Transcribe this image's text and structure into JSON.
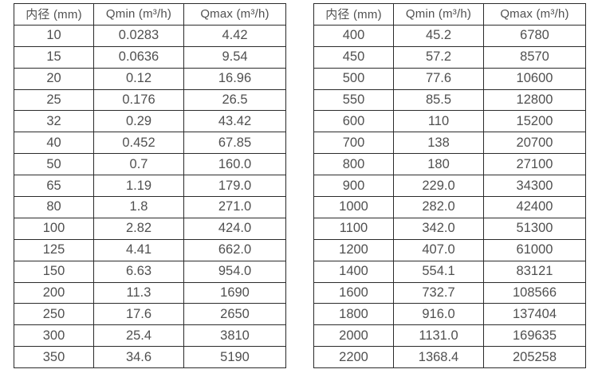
{
  "colors": {
    "border": "#2b2b2b",
    "text": "#505050",
    "background": "#ffffff"
  },
  "chart_data": [
    {
      "type": "table",
      "headers": [
        "内径 (mm)",
        "Qmin (m³/h)",
        "Qmax (m³/h)"
      ],
      "rows": [
        [
          "10",
          "0.0283",
          "4.42"
        ],
        [
          "15",
          "0.0636",
          "9.54"
        ],
        [
          "20",
          "0.12",
          "16.96"
        ],
        [
          "25",
          "0.176",
          "26.5"
        ],
        [
          "32",
          "0.29",
          "43.42"
        ],
        [
          "40",
          "0.452",
          "67.85"
        ],
        [
          "50",
          "0.7",
          "160.0"
        ],
        [
          "65",
          "1.19",
          "179.0"
        ],
        [
          "80",
          "1.8",
          "271.0"
        ],
        [
          "100",
          "2.82",
          "424.0"
        ],
        [
          "125",
          "4.41",
          "662.0"
        ],
        [
          "150",
          "6.63",
          "954.0"
        ],
        [
          "200",
          "11.3",
          "1690"
        ],
        [
          "250",
          "17.6",
          "2650"
        ],
        [
          "300",
          "25.4",
          "3810"
        ],
        [
          "350",
          "34.6",
          "5190"
        ]
      ]
    },
    {
      "type": "table",
      "headers": [
        "内径 (mm)",
        "Qmin (m³/h)",
        "Qmax (m³/h)"
      ],
      "rows": [
        [
          "400",
          "45.2",
          "6780"
        ],
        [
          "450",
          "57.2",
          "8570"
        ],
        [
          "500",
          "77.6",
          "10600"
        ],
        [
          "550",
          "85.5",
          "12800"
        ],
        [
          "600",
          "110",
          "15200"
        ],
        [
          "700",
          "138",
          "20700"
        ],
        [
          "800",
          "180",
          "27100"
        ],
        [
          "900",
          "229.0",
          "34300"
        ],
        [
          "1000",
          "282.0",
          "42400"
        ],
        [
          "1100",
          "342.0",
          "51300"
        ],
        [
          "1200",
          "407.0",
          "61000"
        ],
        [
          "1400",
          "554.1",
          "83121"
        ],
        [
          "1600",
          "732.7",
          "108566"
        ],
        [
          "1800",
          "916.0",
          "137404"
        ],
        [
          "2000",
          "1131.0",
          "169635"
        ],
        [
          "2200",
          "1368.4",
          "205258"
        ]
      ]
    }
  ]
}
